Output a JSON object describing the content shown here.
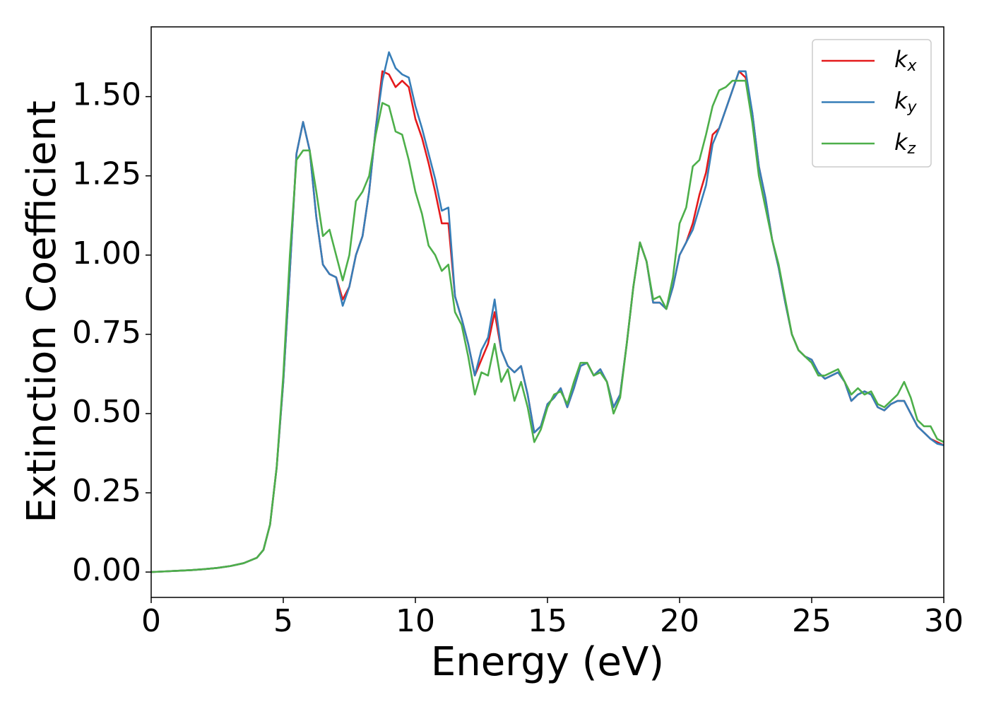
{
  "chart_data": {
    "type": "line",
    "xlabel": "Energy (eV)",
    "ylabel": "Extinction Coefficient",
    "x": [
      0,
      0.5,
      1,
      1.5,
      2,
      2.5,
      3,
      3.5,
      4,
      4.25,
      4.5,
      4.75,
      5,
      5.25,
      5.5,
      5.75,
      6,
      6.25,
      6.5,
      6.75,
      7,
      7.25,
      7.5,
      7.75,
      8,
      8.25,
      8.5,
      8.75,
      9,
      9.25,
      9.5,
      9.75,
      10,
      10.25,
      10.5,
      10.75,
      11,
      11.25,
      11.5,
      11.75,
      12,
      12.25,
      12.5,
      12.75,
      13,
      13.25,
      13.5,
      13.75,
      14,
      14.25,
      14.5,
      14.75,
      15,
      15.25,
      15.5,
      15.75,
      16,
      16.25,
      16.5,
      16.75,
      17,
      17.25,
      17.5,
      17.75,
      18,
      18.25,
      18.5,
      18.75,
      19,
      19.25,
      19.5,
      19.75,
      20,
      20.25,
      20.5,
      20.75,
      21,
      21.25,
      21.5,
      21.75,
      22,
      22.25,
      22.5,
      22.75,
      23,
      23.25,
      23.5,
      23.75,
      24,
      24.25,
      24.5,
      24.75,
      25,
      25.25,
      25.5,
      25.75,
      26,
      26.25,
      26.5,
      26.75,
      27,
      27.25,
      27.5,
      27.75,
      28,
      28.25,
      28.5,
      28.75,
      29,
      29.25,
      29.5,
      29.75,
      30
    ],
    "series": [
      {
        "name": "kx",
        "color": "#e41a1c",
        "values": [
          0,
          0.002,
          0.004,
          0.006,
          0.009,
          0.013,
          0.019,
          0.028,
          0.045,
          0.07,
          0.15,
          0.33,
          0.6,
          0.95,
          1.32,
          1.42,
          1.33,
          1.12,
          0.97,
          0.94,
          0.93,
          0.86,
          0.9,
          1.0,
          1.06,
          1.2,
          1.4,
          1.58,
          1.57,
          1.53,
          1.55,
          1.53,
          1.43,
          1.37,
          1.29,
          1.2,
          1.1,
          1.1,
          0.87,
          0.8,
          0.72,
          0.62,
          0.67,
          0.72,
          0.82,
          0.7,
          0.65,
          0.63,
          0.65,
          0.56,
          0.44,
          0.46,
          0.53,
          0.55,
          0.58,
          0.52,
          0.58,
          0.65,
          0.66,
          0.62,
          0.64,
          0.6,
          0.52,
          0.56,
          0.72,
          0.9,
          1.04,
          0.98,
          0.85,
          0.85,
          0.83,
          0.9,
          1.0,
          1.04,
          1.1,
          1.19,
          1.26,
          1.38,
          1.4,
          1.46,
          1.52,
          1.58,
          1.56,
          1.45,
          1.28,
          1.18,
          1.05,
          0.96,
          0.85,
          0.75,
          0.7,
          0.68,
          0.67,
          0.63,
          0.61,
          0.62,
          0.63,
          0.6,
          0.54,
          0.56,
          0.57,
          0.56,
          0.52,
          0.51,
          0.53,
          0.54,
          0.54,
          0.5,
          0.46,
          0.44,
          0.42,
          0.41,
          0.4
        ]
      },
      {
        "name": "ky",
        "color": "#377eb8",
        "values": [
          0,
          0.002,
          0.004,
          0.006,
          0.009,
          0.013,
          0.019,
          0.028,
          0.045,
          0.07,
          0.15,
          0.33,
          0.6,
          0.95,
          1.32,
          1.42,
          1.33,
          1.12,
          0.97,
          0.94,
          0.93,
          0.84,
          0.9,
          1.0,
          1.06,
          1.2,
          1.4,
          1.55,
          1.64,
          1.59,
          1.57,
          1.56,
          1.47,
          1.4,
          1.32,
          1.24,
          1.14,
          1.15,
          0.87,
          0.8,
          0.72,
          0.62,
          0.7,
          0.74,
          0.86,
          0.7,
          0.65,
          0.63,
          0.65,
          0.56,
          0.44,
          0.46,
          0.53,
          0.55,
          0.58,
          0.52,
          0.58,
          0.65,
          0.66,
          0.62,
          0.64,
          0.6,
          0.52,
          0.56,
          0.72,
          0.9,
          1.04,
          0.98,
          0.85,
          0.85,
          0.83,
          0.9,
          1.0,
          1.04,
          1.08,
          1.15,
          1.22,
          1.35,
          1.4,
          1.46,
          1.52,
          1.58,
          1.58,
          1.45,
          1.28,
          1.18,
          1.05,
          0.96,
          0.85,
          0.75,
          0.7,
          0.68,
          0.67,
          0.63,
          0.61,
          0.62,
          0.63,
          0.6,
          0.54,
          0.56,
          0.57,
          0.56,
          0.52,
          0.51,
          0.53,
          0.54,
          0.54,
          0.5,
          0.46,
          0.44,
          0.42,
          0.405,
          0.4
        ]
      },
      {
        "name": "kz",
        "color": "#4daf4a",
        "values": [
          0,
          0.002,
          0.004,
          0.006,
          0.009,
          0.013,
          0.019,
          0.028,
          0.045,
          0.07,
          0.15,
          0.33,
          0.62,
          1.0,
          1.3,
          1.33,
          1.33,
          1.2,
          1.06,
          1.08,
          1.0,
          0.92,
          1.0,
          1.17,
          1.2,
          1.25,
          1.38,
          1.48,
          1.47,
          1.39,
          1.38,
          1.3,
          1.2,
          1.13,
          1.03,
          1.0,
          0.95,
          0.97,
          0.82,
          0.78,
          0.68,
          0.56,
          0.63,
          0.62,
          0.72,
          0.6,
          0.64,
          0.54,
          0.6,
          0.52,
          0.41,
          0.45,
          0.52,
          0.56,
          0.57,
          0.53,
          0.6,
          0.66,
          0.66,
          0.62,
          0.63,
          0.6,
          0.5,
          0.55,
          0.72,
          0.9,
          1.04,
          0.98,
          0.86,
          0.87,
          0.83,
          0.93,
          1.1,
          1.15,
          1.28,
          1.3,
          1.38,
          1.47,
          1.52,
          1.53,
          1.55,
          1.55,
          1.55,
          1.42,
          1.25,
          1.15,
          1.05,
          0.97,
          0.86,
          0.75,
          0.7,
          0.68,
          0.66,
          0.62,
          0.62,
          0.63,
          0.64,
          0.6,
          0.56,
          0.58,
          0.56,
          0.57,
          0.53,
          0.52,
          0.54,
          0.56,
          0.6,
          0.55,
          0.48,
          0.46,
          0.46,
          0.42,
          0.41
        ]
      }
    ],
    "xlim": [
      0,
      30
    ],
    "xticks": [
      0,
      5,
      10,
      15,
      20,
      25,
      30
    ],
    "ylim": [
      -0.08,
      1.72
    ],
    "yticks": [
      {
        "value": 0,
        "label": "0.00"
      },
      {
        "value": 0.25,
        "label": "0.25"
      },
      {
        "value": 0.5,
        "label": "0.50"
      },
      {
        "value": 0.75,
        "label": "0.75"
      },
      {
        "value": 1,
        "label": "1.00"
      },
      {
        "value": 1.25,
        "label": "1.25"
      },
      {
        "value": 1.5,
        "label": "1.50"
      }
    ],
    "grid": false,
    "legend": "upper right"
  }
}
